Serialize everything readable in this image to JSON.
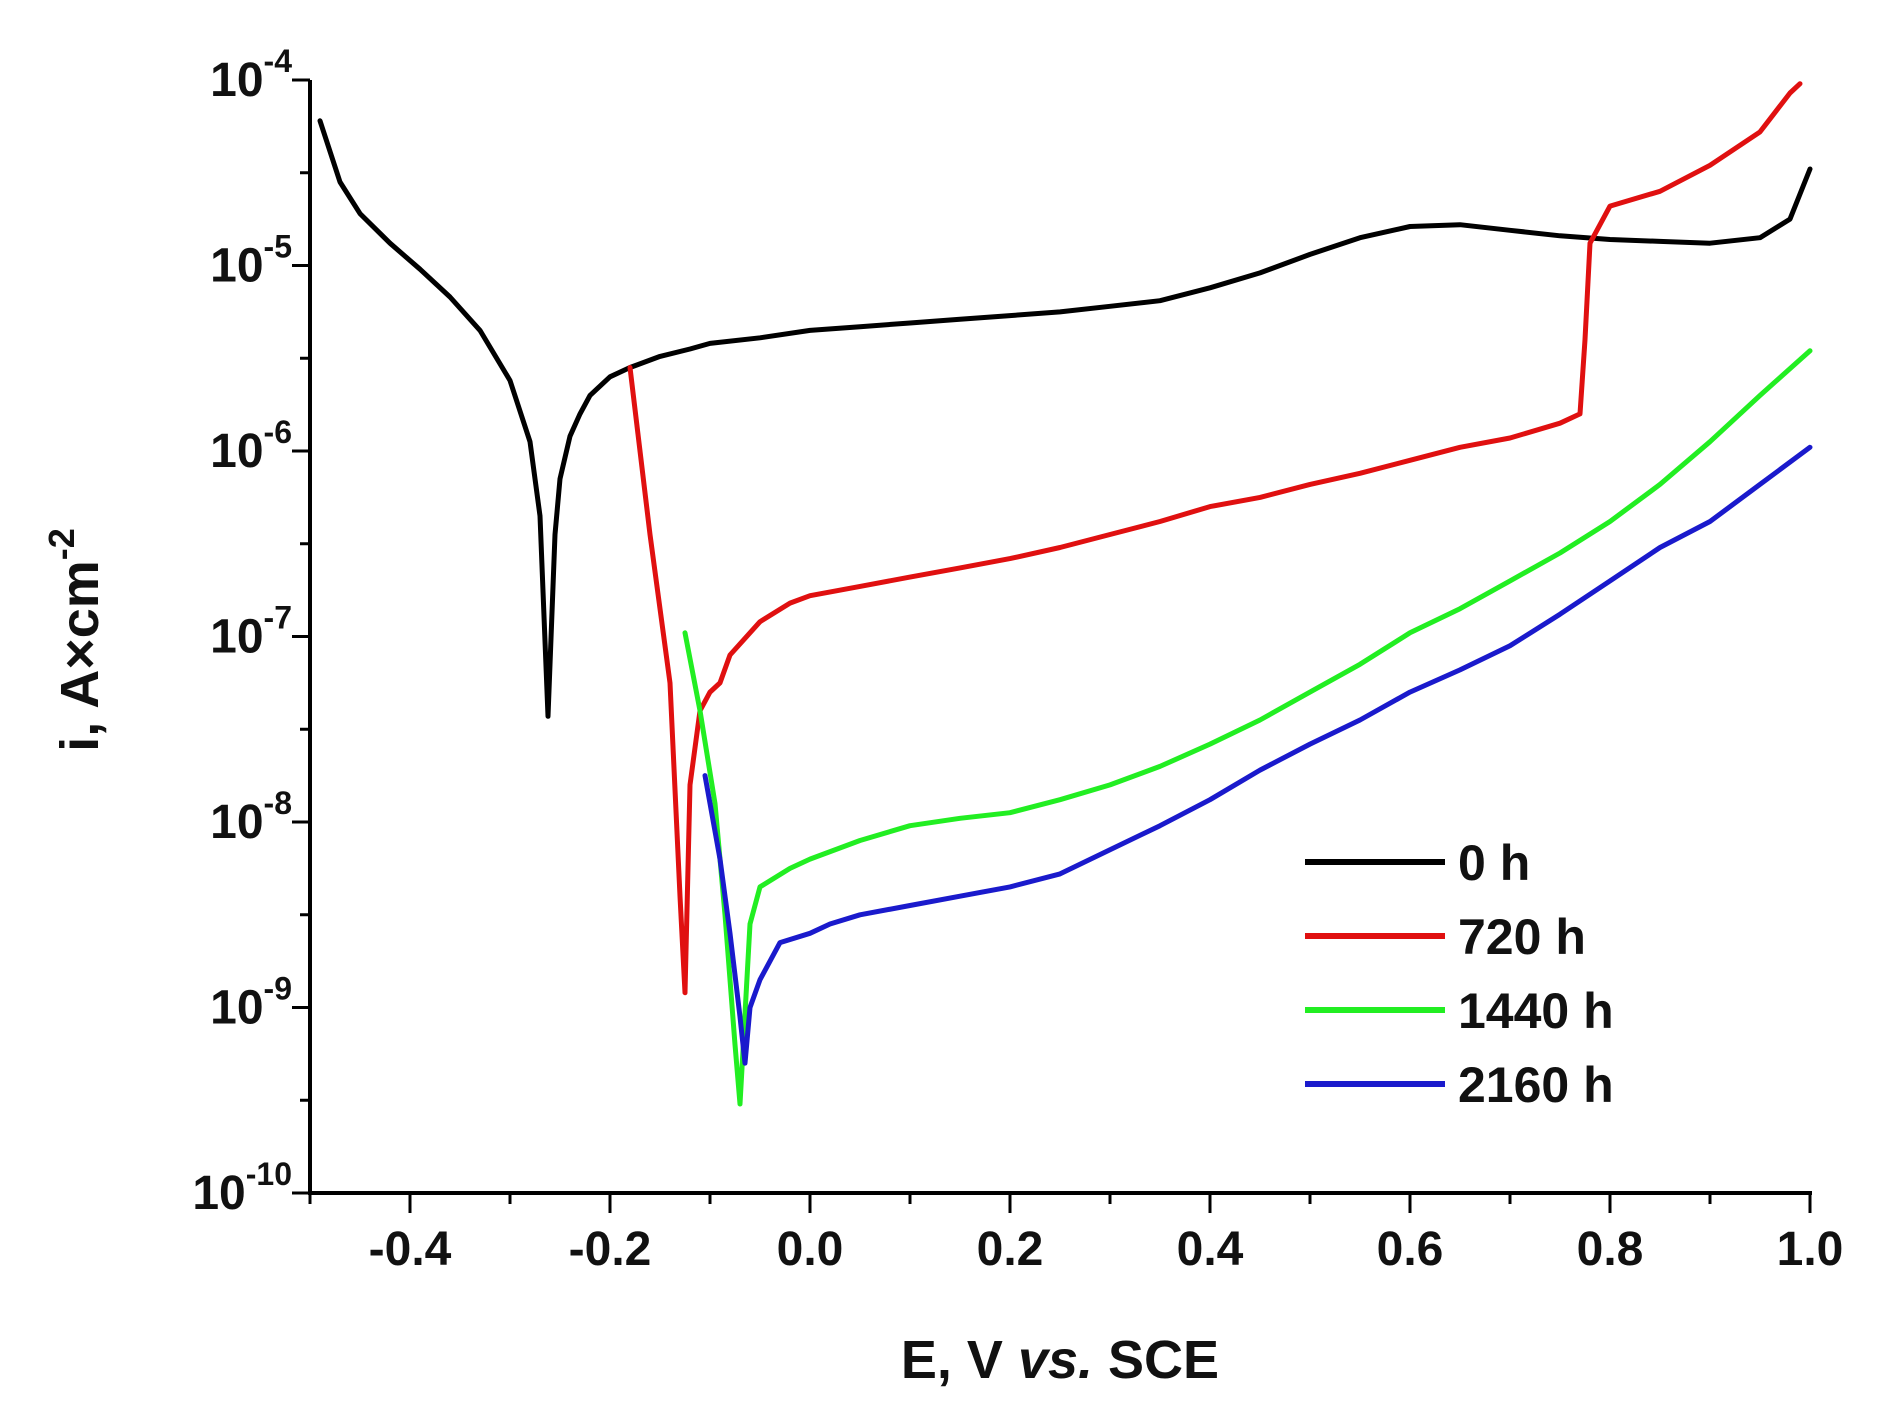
{
  "chart_data": {
    "type": "line",
    "title": "",
    "xlabel": {
      "main": "E, V ",
      "italic": "vs.",
      "tail": " SCE"
    },
    "ylabel": {
      "main": "i, A×cm",
      "sup": "-2"
    },
    "xlim": [
      -0.5,
      1.0
    ],
    "ylim_log10": [
      -10,
      -4
    ],
    "yscale": "log",
    "x_ticks": [
      -0.4,
      -0.2,
      0.0,
      0.2,
      0.4,
      0.6,
      0.8,
      1.0
    ],
    "x_tick_labels": [
      "-0.4",
      "-0.2",
      "0.0",
      "0.2",
      "0.4",
      "0.6",
      "0.8",
      "1.0"
    ],
    "y_ticks": [
      {
        "base": "10",
        "exp": "-4",
        "value": -4
      },
      {
        "base": "10",
        "exp": "-5",
        "value": -5
      },
      {
        "base": "10",
        "exp": "-6",
        "value": -6
      },
      {
        "base": "10",
        "exp": "-7",
        "value": -7
      },
      {
        "base": "10",
        "exp": "-8",
        "value": -8
      },
      {
        "base": "10",
        "exp": "-9",
        "value": -9
      },
      {
        "base": "10",
        "exp": "-10",
        "value": -10
      }
    ],
    "legend_position": "bottom-right",
    "grid": false,
    "series": [
      {
        "name": "0 h",
        "color": "#000000",
        "x": [
          -0.49,
          -0.47,
          -0.45,
          -0.42,
          -0.39,
          -0.36,
          -0.33,
          -0.3,
          -0.28,
          -0.27,
          -0.262,
          -0.255,
          -0.25,
          -0.24,
          -0.23,
          -0.22,
          -0.2,
          -0.18,
          -0.15,
          -0.12,
          -0.1,
          -0.05,
          0.0,
          0.05,
          0.1,
          0.15,
          0.2,
          0.25,
          0.3,
          0.35,
          0.4,
          0.45,
          0.5,
          0.55,
          0.6,
          0.65,
          0.7,
          0.75,
          0.8,
          0.85,
          0.9,
          0.95,
          0.98,
          1.0
        ],
        "log_y": [
          -4.22,
          -4.55,
          -4.72,
          -4.88,
          -5.02,
          -5.17,
          -5.35,
          -5.62,
          -5.95,
          -6.35,
          -7.43,
          -6.45,
          -6.15,
          -5.92,
          -5.8,
          -5.7,
          -5.6,
          -5.55,
          -5.49,
          -5.45,
          -5.42,
          -5.39,
          -5.35,
          -5.33,
          -5.31,
          -5.29,
          -5.27,
          -5.25,
          -5.22,
          -5.19,
          -5.12,
          -5.04,
          -4.94,
          -4.85,
          -4.79,
          -4.78,
          -4.81,
          -4.84,
          -4.86,
          -4.87,
          -4.88,
          -4.85,
          -4.75,
          -4.48
        ]
      },
      {
        "name": "720 h",
        "color": "#e01010",
        "x": [
          -0.18,
          -0.16,
          -0.14,
          -0.13,
          -0.125,
          -0.12,
          -0.11,
          -0.1,
          -0.09,
          -0.08,
          -0.05,
          -0.02,
          0.0,
          0.05,
          0.1,
          0.15,
          0.2,
          0.25,
          0.3,
          0.35,
          0.4,
          0.45,
          0.5,
          0.55,
          0.6,
          0.65,
          0.7,
          0.75,
          0.77,
          0.775,
          0.78,
          0.8,
          0.85,
          0.9,
          0.95,
          0.98,
          0.99
        ],
        "log_y": [
          -5.55,
          -6.45,
          -7.25,
          -8.4,
          -8.92,
          -7.8,
          -7.4,
          -7.3,
          -7.25,
          -7.1,
          -6.92,
          -6.82,
          -6.78,
          -6.73,
          -6.68,
          -6.63,
          -6.58,
          -6.52,
          -6.45,
          -6.38,
          -6.3,
          -6.25,
          -6.18,
          -6.12,
          -6.05,
          -5.98,
          -5.93,
          -5.85,
          -5.8,
          -5.4,
          -4.88,
          -4.68,
          -4.6,
          -4.46,
          -4.28,
          -4.07,
          -4.02
        ]
      },
      {
        "name": "1440 h",
        "color": "#22ee22",
        "x": [
          -0.125,
          -0.11,
          -0.095,
          -0.085,
          -0.075,
          -0.07,
          -0.06,
          -0.05,
          -0.02,
          0.0,
          0.05,
          0.1,
          0.15,
          0.2,
          0.25,
          0.3,
          0.35,
          0.4,
          0.45,
          0.5,
          0.55,
          0.6,
          0.65,
          0.7,
          0.75,
          0.8,
          0.85,
          0.9,
          0.95,
          1.0
        ],
        "log_y": [
          -6.98,
          -7.4,
          -7.9,
          -8.5,
          -9.2,
          -9.52,
          -8.55,
          -8.35,
          -8.25,
          -8.2,
          -8.1,
          -8.02,
          -7.98,
          -7.95,
          -7.88,
          -7.8,
          -7.7,
          -7.58,
          -7.45,
          -7.3,
          -7.15,
          -6.98,
          -6.85,
          -6.7,
          -6.55,
          -6.38,
          -6.18,
          -5.95,
          -5.7,
          -5.46
        ]
      },
      {
        "name": "2160 h",
        "color": "#1a1acc",
        "x": [
          -0.105,
          -0.09,
          -0.08,
          -0.07,
          -0.065,
          -0.06,
          -0.05,
          -0.03,
          0.0,
          0.02,
          0.05,
          0.1,
          0.15,
          0.2,
          0.25,
          0.3,
          0.35,
          0.4,
          0.45,
          0.5,
          0.55,
          0.6,
          0.65,
          0.7,
          0.75,
          0.8,
          0.85,
          0.9,
          0.95,
          1.0
        ],
        "log_y": [
          -7.75,
          -8.2,
          -8.6,
          -9.05,
          -9.3,
          -9.0,
          -8.85,
          -8.65,
          -8.6,
          -8.55,
          -8.5,
          -8.45,
          -8.4,
          -8.35,
          -8.28,
          -8.15,
          -8.02,
          -7.88,
          -7.72,
          -7.58,
          -7.45,
          -7.3,
          -7.18,
          -7.05,
          -6.88,
          -6.7,
          -6.52,
          -6.38,
          -6.18,
          -5.98
        ]
      }
    ]
  }
}
